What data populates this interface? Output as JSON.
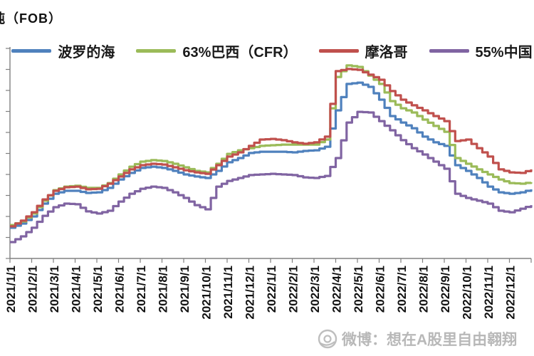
{
  "unit_label": "吨（FOB）",
  "legend": [
    {
      "label": "波罗的海",
      "color": "#4F81BD"
    },
    {
      "label": "63%巴西（CFR）",
      "color": "#9BBB59"
    },
    {
      "label": "摩洛哥",
      "color": "#C0504D"
    },
    {
      "label": "55%中国",
      "color": "#8064A2"
    }
  ],
  "watermark": {
    "icon": "weibo-eye-logo",
    "text": "微博：想在A股里自由翱翔"
  },
  "chart_data": {
    "type": "line",
    "title": "",
    "xlabel": "",
    "ylabel": "吨（FOB）",
    "axis_color": "#808080",
    "grid": "off",
    "legend_position": "top-center",
    "x_tick_labels": [
      "2021/1/1",
      "2021/2/1",
      "2021/3/1",
      "2021/4/1",
      "2021/5/1",
      "2021/6/1",
      "2021/7/1",
      "2021/8/1",
      "2021/9/1",
      "2021/10/1",
      "2021/11/1",
      "2021/12/1",
      "2022/1/1",
      "2022/2/1",
      "2022/3/1",
      "2022/4/1",
      "2022/5/1",
      "2022/6/1",
      "2022/7/1",
      "2022/8/1",
      "2022/9/1",
      "2022/10/1",
      "2022/11/1",
      "2022/12/1"
    ],
    "samples_per_month": 2,
    "y_axis": {
      "tick_count": 11,
      "tick_labels_visible": false,
      "note": "y-axis numeric labels are cropped off the left edge of the image; values below are relative 0-100 of plot height",
      "range": [
        0,
        100
      ]
    },
    "series": [
      {
        "id": "baltic",
        "name": "波罗的海",
        "color": "#4F81BD",
        "values": [
          14.6,
          16.6,
          20.0,
          26.1,
          30.8,
          32.2,
          32.2,
          31.2,
          31.5,
          33.6,
          37.6,
          40.7,
          43.1,
          43.7,
          43.1,
          41.7,
          40.0,
          39.0,
          38.3,
          41.7,
          45.8,
          47.8,
          50.2,
          50.8,
          50.8,
          50.8,
          50.5,
          51.2,
          51.5,
          53.2,
          70.5,
          83.1,
          83.7,
          81.7,
          75.6,
          67.8,
          64.7,
          62.0,
          58.0,
          55.3,
          53.6,
          44.4,
          41.7,
          38.3,
          34.2,
          31.5,
          30.8,
          31.5,
          32.9
        ]
      },
      {
        "id": "brazil63",
        "name": "63%巴西（CFR）",
        "color": "#9BBB59",
        "values": [
          15.9,
          17.6,
          21.4,
          27.5,
          32.5,
          34.2,
          34.6,
          33.6,
          33.6,
          35.9,
          40.0,
          43.7,
          46.1,
          46.8,
          46.4,
          45.1,
          43.4,
          41.7,
          41.0,
          45.1,
          49.8,
          51.5,
          52.5,
          53.6,
          53.9,
          54.2,
          54.2,
          54.2,
          54.2,
          56.6,
          86.4,
          91.9,
          91.2,
          87.1,
          83.1,
          74.9,
          71.5,
          69.5,
          66.1,
          63.1,
          60.3,
          47.8,
          45.1,
          42.4,
          40.0,
          37.6,
          35.9,
          35.6,
          36.3
        ]
      },
      {
        "id": "morocco",
        "name": "摩洛哥",
        "color": "#C0504D",
        "values": [
          15.3,
          18.0,
          22.0,
          28.1,
          32.2,
          33.9,
          34.2,
          32.9,
          33.2,
          35.6,
          39.0,
          42.4,
          44.4,
          45.1,
          44.7,
          43.4,
          42.0,
          41.0,
          40.3,
          44.4,
          48.5,
          50.5,
          53.6,
          56.6,
          56.9,
          56.3,
          55.3,
          54.6,
          55.3,
          58.0,
          89.2,
          90.2,
          89.8,
          87.5,
          85.1,
          79.7,
          75.6,
          72.9,
          70.5,
          67.8,
          65.4,
          55.9,
          56.6,
          52.5,
          48.5,
          42.4,
          41.0,
          40.7,
          42.4
        ]
      },
      {
        "id": "china55",
        "name": "55%中国",
        "color": "#8064A2",
        "values": [
          7.8,
          10.5,
          14.6,
          20.3,
          24.4,
          26.1,
          25.8,
          22.4,
          21.4,
          22.7,
          27.1,
          30.8,
          33.2,
          34.2,
          33.6,
          31.5,
          28.8,
          25.4,
          23.4,
          34.2,
          36.9,
          38.3,
          39.7,
          40.0,
          40.3,
          40.0,
          39.7,
          38.6,
          38.3,
          39.3,
          47.8,
          64.7,
          69.8,
          69.5,
          65.4,
          61.0,
          56.3,
          52.5,
          49.5,
          46.1,
          42.7,
          30.8,
          28.8,
          27.5,
          26.1,
          22.7,
          22.0,
          23.7,
          25.4
        ]
      }
    ]
  }
}
